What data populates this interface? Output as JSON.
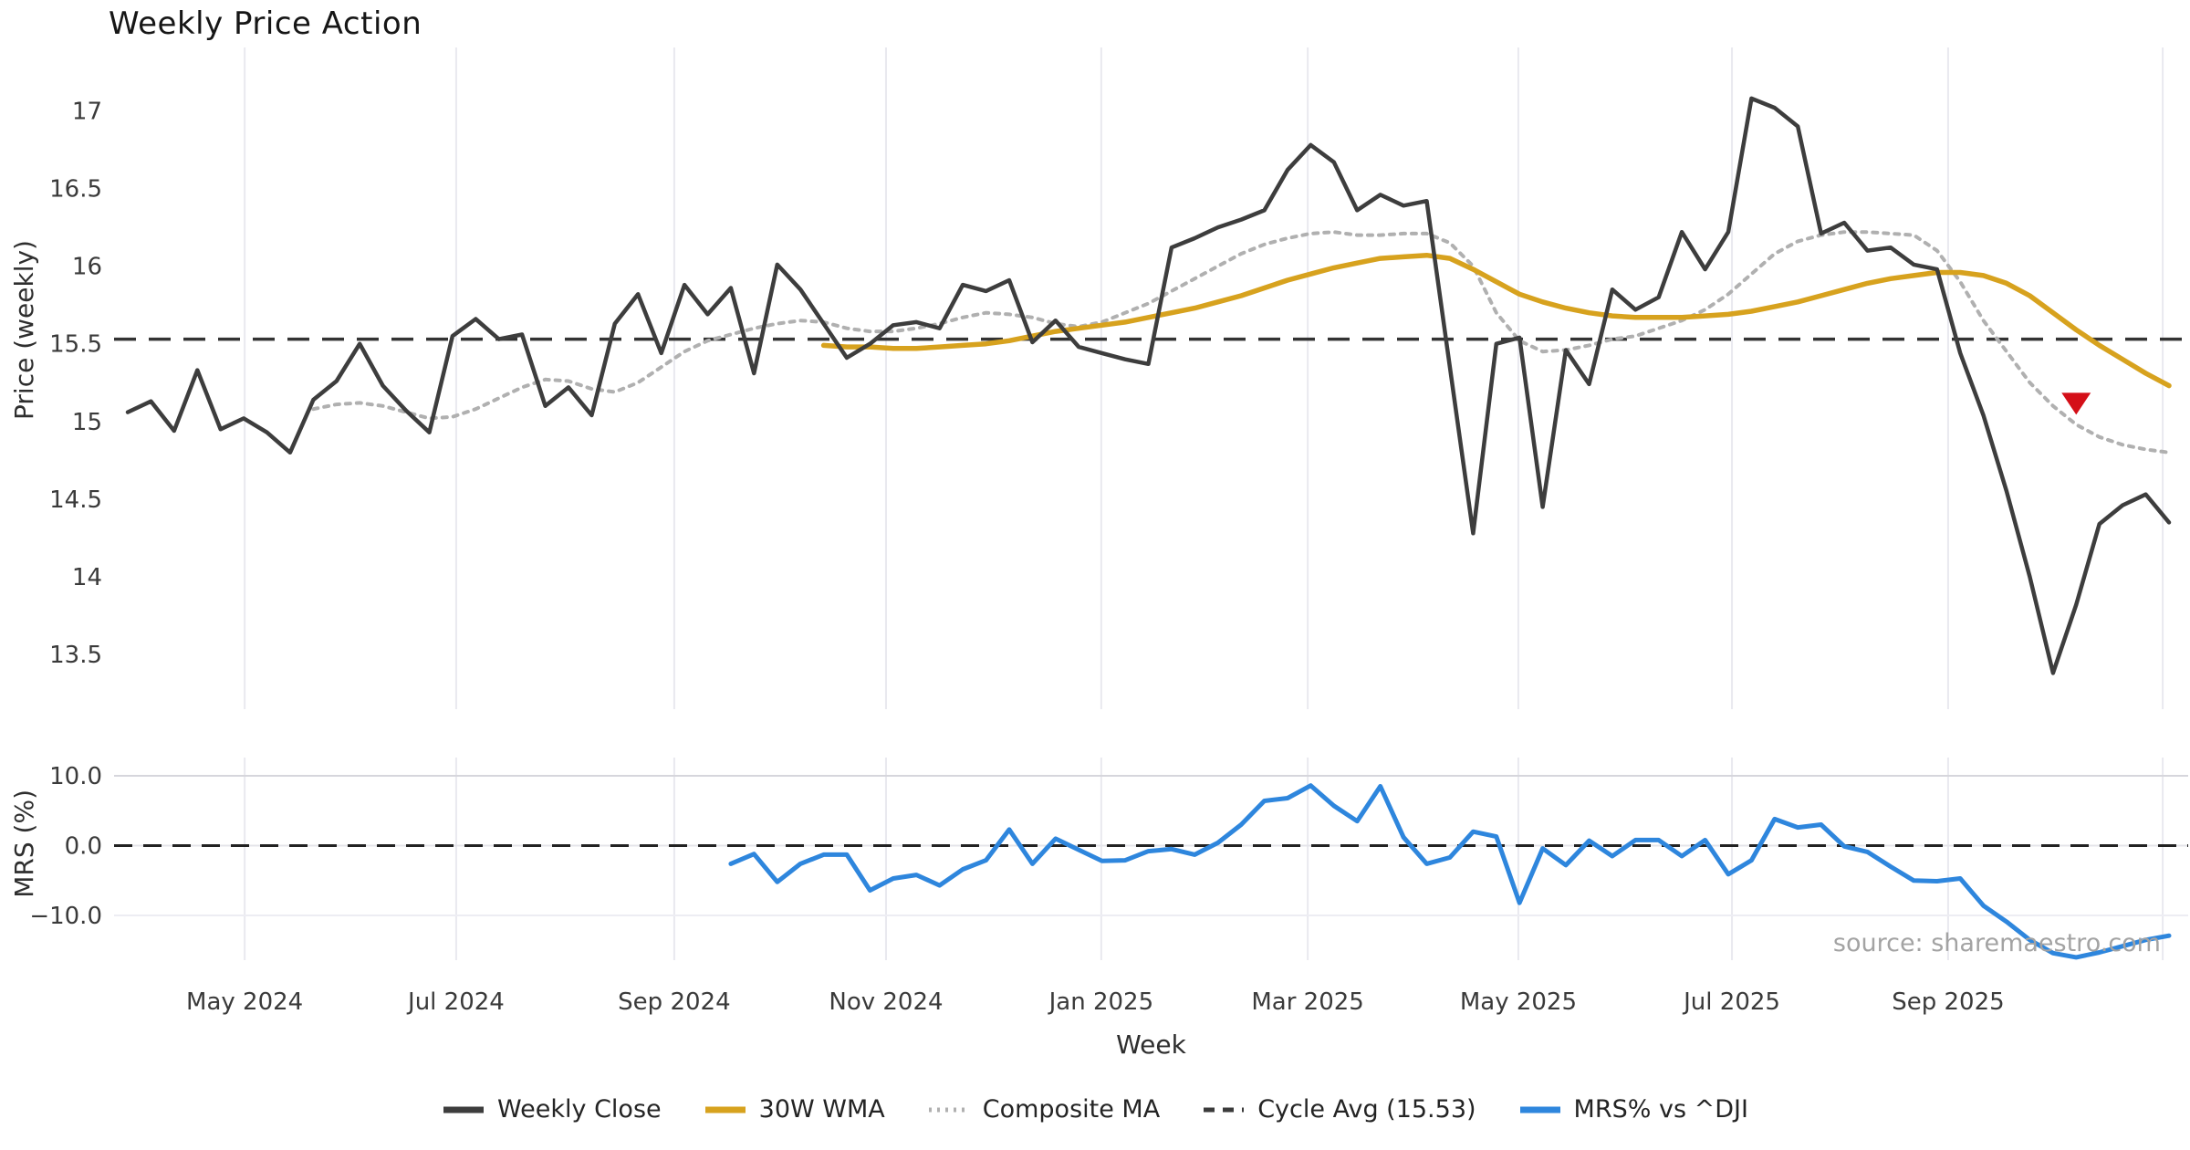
{
  "title": "Weekly Price Action",
  "source_note": "source: sharemaestro.com",
  "colors": {
    "weekly_close": "#3d3d3d",
    "wma_30": "#d7a21e",
    "composite_ma": "#b0b0b0",
    "cycle_avg": "#333333",
    "mrs_line": "#2e86dd",
    "signal_marker": "#d40f18",
    "gridline": "#e9e9ef",
    "zero_line": "#222222"
  },
  "price_axis": {
    "label": "Price (weekly)",
    "ticks": [
      {
        "label": "17",
        "value": 17
      },
      {
        "label": "16.5",
        "value": 16.5
      },
      {
        "label": "16",
        "value": 16
      },
      {
        "label": "15.5",
        "value": 15.5
      },
      {
        "label": "15",
        "value": 15
      },
      {
        "label": "14.5",
        "value": 14.5
      },
      {
        "label": "14",
        "value": 14
      },
      {
        "label": "13.5",
        "value": 13.5
      }
    ]
  },
  "mrs_axis": {
    "label": "MRS (%)",
    "ticks": [
      {
        "label": "10.0",
        "value": 10
      },
      {
        "label": "0.0",
        "value": 0
      },
      {
        "label": "−10.0",
        "value": -10
      }
    ]
  },
  "x_axis": {
    "label": "Week",
    "ticks": [
      {
        "label": "May 2024",
        "week_index": 5.04
      },
      {
        "label": "Jul 2024",
        "week_index": 14.16
      },
      {
        "label": "Sep 2024",
        "week_index": 23.56
      },
      {
        "label": "Nov 2024",
        "week_index": 32.69
      },
      {
        "label": "Jan 2025",
        "week_index": 41.97
      },
      {
        "label": "Mar 2025",
        "week_index": 50.87
      },
      {
        "label": "May 2025",
        "week_index": 59.95
      },
      {
        "label": "Jul 2025",
        "week_index": 69.16
      },
      {
        "label": "Sep 2025",
        "week_index": 78.48
      },
      {
        "label": "",
        "week_index": 87.73
      }
    ]
  },
  "legend": [
    {
      "label": "Weekly Close",
      "swatch": {
        "color": "#3d3d3d",
        "width": 7,
        "dash": ""
      }
    },
    {
      "label": "30W WMA",
      "swatch": {
        "color": "#d7a21e",
        "width": 7,
        "dash": ""
      }
    },
    {
      "label": "Composite MA",
      "swatch": {
        "color": "#b0b0b0",
        "width": 5,
        "dash": "3 6"
      }
    },
    {
      "label": "Cycle Avg (15.53)",
      "swatch": {
        "color": "#3b3b3b",
        "width": 5,
        "dash": "12 9"
      }
    },
    {
      "label": "MRS% vs ^DJI",
      "swatch": {
        "color": "#2e86dd",
        "width": 7,
        "dash": ""
      }
    }
  ],
  "chart_data": [
    {
      "type": "line",
      "panel": "price",
      "title": "Weekly Price Action",
      "ylabel": "Price (weekly)",
      "ylim": [
        13.3,
        17.15
      ],
      "x_unit": "week_index",
      "n_points": 89,
      "cycle_avg": 15.53,
      "signal_marker": {
        "shape": "triangle-down",
        "color": "#d40f18",
        "week_index": 84,
        "value": 15.12
      },
      "series": [
        {
          "name": "Weekly Close",
          "color": "#3d3d3d",
          "width": 4.5,
          "dash": "",
          "start_index": 0,
          "values": [
            15.06,
            15.13,
            14.94,
            15.33,
            14.95,
            15.02,
            14.93,
            14.8,
            15.14,
            15.26,
            15.5,
            15.23,
            15.07,
            14.93,
            15.55,
            15.66,
            15.53,
            15.56,
            15.1,
            15.22,
            15.04,
            15.63,
            15.82,
            15.44,
            15.88,
            15.69,
            15.86,
            15.31,
            16.01,
            15.85,
            15.63,
            15.41,
            15.5,
            15.62,
            15.64,
            15.6,
            15.88,
            15.84,
            15.91,
            15.51,
            15.65,
            15.48,
            15.44,
            15.4,
            15.37,
            16.12,
            16.18,
            16.25,
            16.3,
            16.36,
            16.62,
            16.78,
            16.67,
            16.36,
            16.46,
            16.39,
            16.42,
            15.35,
            14.28,
            15.5,
            15.54,
            14.45,
            15.46,
            15.24,
            15.85,
            15.72,
            15.8,
            16.22,
            15.98,
            16.22,
            17.08,
            17.02,
            16.9,
            16.21,
            16.28,
            16.1,
            16.12,
            16.01,
            15.98,
            15.44,
            15.04,
            14.55,
            14.0,
            13.38,
            13.82,
            14.34,
            14.46,
            14.53,
            14.35
          ]
        },
        {
          "name": "30W WMA",
          "color": "#d7a21e",
          "width": 5.5,
          "dash": "",
          "start_index": 30,
          "values": [
            15.49,
            15.48,
            15.48,
            15.47,
            15.47,
            15.48,
            15.49,
            15.5,
            15.52,
            15.55,
            15.58,
            15.6,
            15.62,
            15.64,
            15.67,
            15.7,
            15.73,
            15.77,
            15.81,
            15.86,
            15.91,
            15.95,
            15.99,
            16.02,
            16.05,
            16.06,
            16.07,
            16.05,
            15.98,
            15.9,
            15.82,
            15.77,
            15.73,
            15.7,
            15.68,
            15.67,
            15.67,
            15.67,
            15.68,
            15.69,
            15.71,
            15.74,
            15.77,
            15.81,
            15.85,
            15.89,
            15.92,
            15.94,
            15.96,
            15.96,
            15.94,
            15.89,
            15.81,
            15.7,
            15.59,
            15.49,
            15.4,
            15.31,
            15.23
          ]
        },
        {
          "name": "Composite MA",
          "color": "#b0b0b0",
          "width": 4,
          "dash": "5 7",
          "start_index": 8,
          "values": [
            15.08,
            15.11,
            15.12,
            15.1,
            15.06,
            15.02,
            15.03,
            15.08,
            15.15,
            15.22,
            15.27,
            15.26,
            15.21,
            15.19,
            15.25,
            15.35,
            15.45,
            15.52,
            15.56,
            15.6,
            15.63,
            15.65,
            15.64,
            15.6,
            15.58,
            15.58,
            15.6,
            15.63,
            15.67,
            15.7,
            15.69,
            15.67,
            15.63,
            15.61,
            15.64,
            15.7,
            15.76,
            15.84,
            15.92,
            16.0,
            16.08,
            16.14,
            16.18,
            16.21,
            16.22,
            16.2,
            16.2,
            16.21,
            16.21,
            16.15,
            16.0,
            15.7,
            15.52,
            15.45,
            15.46,
            15.49,
            15.53,
            15.55,
            15.6,
            15.65,
            15.72,
            15.82,
            15.95,
            16.08,
            16.16,
            16.2,
            16.22,
            16.22,
            16.21,
            16.2,
            16.1,
            15.9,
            15.65,
            15.45,
            15.25,
            15.1,
            14.98,
            14.9,
            14.85,
            14.82,
            14.8
          ]
        }
      ]
    },
    {
      "type": "line",
      "panel": "mrs",
      "ylabel": "MRS (%)",
      "xlabel": "Week",
      "ylim": [
        -10,
        10
      ],
      "zero_line": true,
      "x_unit": "week_index",
      "series": [
        {
          "name": "MRS% vs ^DJI",
          "color": "#2e86dd",
          "width": 5,
          "dash": "",
          "start_index": 26,
          "values": [
            -2.6,
            -1.2,
            -5.2,
            -2.6,
            -1.3,
            -1.3,
            -6.4,
            -4.7,
            -4.2,
            -5.7,
            -3.4,
            -2.1,
            2.3,
            -2.6,
            1.0,
            -0.6,
            -2.2,
            -2.1,
            -0.8,
            -0.5,
            -1.3,
            0.4,
            3.0,
            6.4,
            6.8,
            8.6,
            5.7,
            3.5,
            8.5,
            1.2,
            -2.6,
            -1.7,
            2.0,
            1.3,
            -8.2,
            -0.4,
            -2.8,
            0.7,
            -1.5,
            0.8,
            0.8,
            -1.5,
            0.8,
            -4.1,
            -2.1,
            3.8,
            2.6,
            3.0,
            -0.1,
            -0.9,
            -3.0,
            -5.0,
            -5.1,
            -4.7,
            -8.6,
            -10.9,
            -13.5,
            -15.4,
            -16.0,
            -15.3,
            -14.4,
            -13.5,
            -12.9
          ]
        }
      ]
    }
  ]
}
